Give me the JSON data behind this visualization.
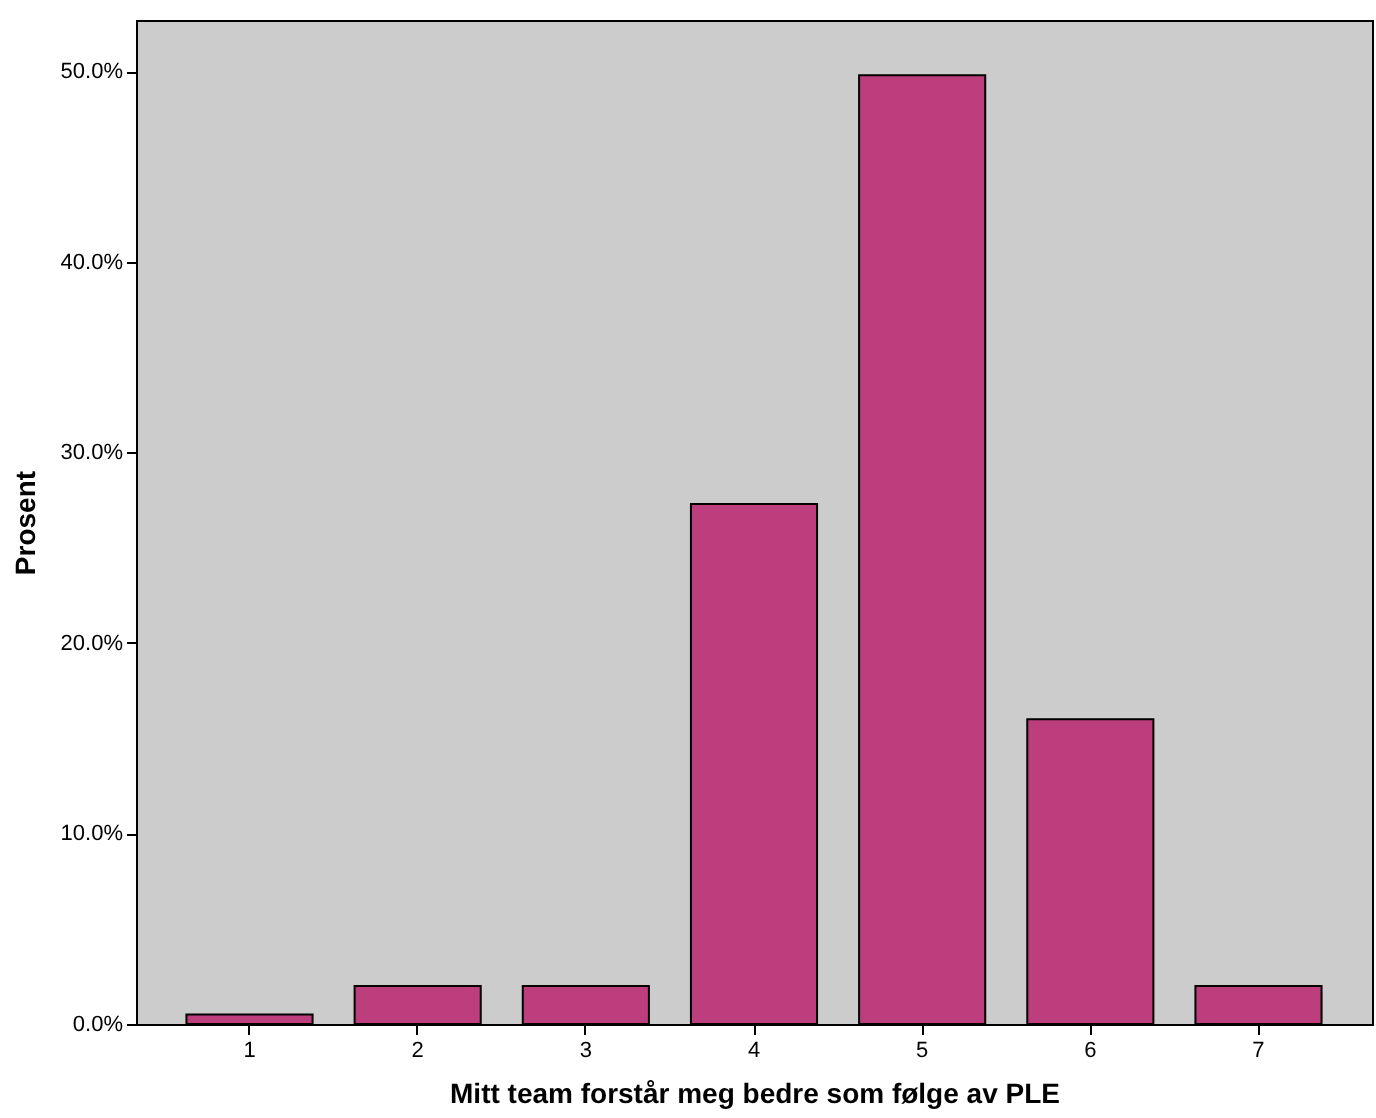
{
  "chart_data": {
    "type": "bar",
    "xlabel": "Mitt team forstår meg bedre som følge av PLE",
    "ylabel": "Prosent",
    "categories": [
      "1",
      "2",
      "3",
      "4",
      "5",
      "6",
      "7"
    ],
    "values": [
      0.5,
      2.0,
      2.0,
      27.3,
      49.8,
      16.0,
      2.0
    ],
    "color": "#bc3e7d",
    "ylim": [
      0,
      52.7
    ],
    "yticks": [
      {
        "value": 0,
        "label": "0.0%"
      },
      {
        "value": 10,
        "label": "10.0%"
      },
      {
        "value": 20,
        "label": "20.0%"
      },
      {
        "value": 30,
        "label": "30.0%"
      },
      {
        "value": 40,
        "label": "40.0%"
      },
      {
        "value": 50,
        "label": "50.0%"
      }
    ],
    "grid": false
  }
}
